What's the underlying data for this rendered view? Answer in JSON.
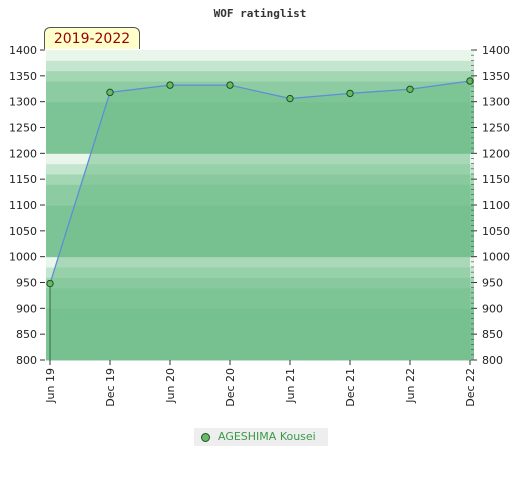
{
  "chart_data": {
    "type": "line",
    "title": "WOF ratinglist",
    "period_label": "2019-2022",
    "x": [
      "Jun 19",
      "Dec 19",
      "Jun 20",
      "Dec 20",
      "Jun 21",
      "Dec 21",
      "Jun 22",
      "Dec 22"
    ],
    "series": [
      {
        "name": "AGESHIMA Kousei",
        "values": [
          948,
          1318,
          1332,
          1332,
          1306,
          1316,
          1324,
          1340
        ]
      }
    ],
    "ylim": [
      800,
      1400
    ],
    "yticks": [
      800,
      850,
      900,
      950,
      1000,
      1050,
      1100,
      1150,
      1200,
      1250,
      1300,
      1350,
      1400
    ],
    "legend_position": "bottom-center",
    "grid": true,
    "colors": {
      "line": "#5b8fd6",
      "marker": "#66bb66",
      "marker_edge": "#1f4f1f",
      "fill": "#72bf8c",
      "band_dark": "#7cc495",
      "band_light": "#b8e0c4"
    }
  }
}
